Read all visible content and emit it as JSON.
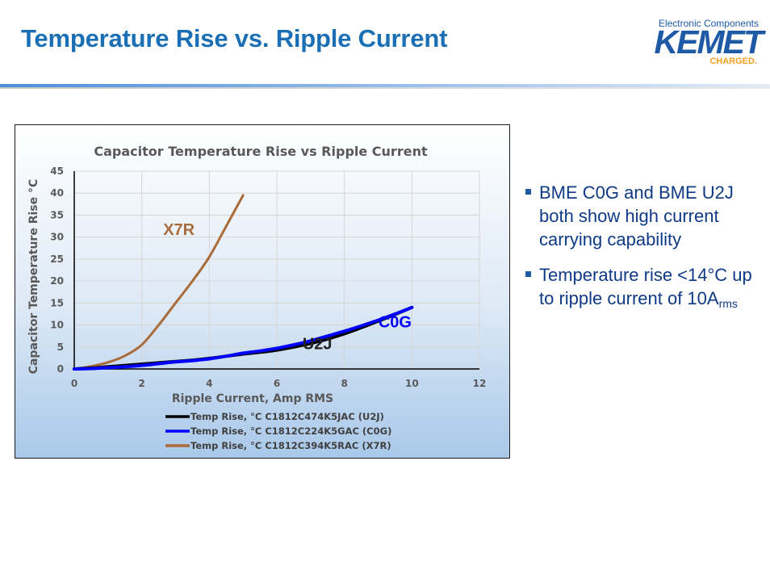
{
  "slide": {
    "title": "Temperature Rise vs. Ripple Current",
    "logo": {
      "tagline": "Electronic Components",
      "brand": "KEMET",
      "sub": "CHARGED."
    }
  },
  "bullets": [
    {
      "text": "BME C0G and BME U2J both show high current carrying capability"
    },
    {
      "text": "Temperature rise <14°C up to ripple current of 10A",
      "subscript": "rms"
    }
  ],
  "chart_data": {
    "type": "line",
    "title": "Capacitor Temperature Rise vs Ripple Current",
    "xlabel": "Ripple Current, Amp RMS",
    "ylabel": "Capacitor Temperature Rise °C",
    "xlim": [
      0,
      12
    ],
    "ylim": [
      0,
      45
    ],
    "xticks": [
      0,
      2,
      4,
      6,
      8,
      10,
      12
    ],
    "yticks": [
      0,
      5,
      10,
      15,
      20,
      25,
      30,
      35,
      40,
      45
    ],
    "grid": true,
    "legend_position": "bottom",
    "series": [
      {
        "name": "Temp Rise, °C C1812C474K5JAC (U2J)",
        "color": "#000000",
        "x": [
          0,
          0.5,
          1,
          1.5,
          2,
          2.5,
          3,
          3.5,
          4,
          4.5,
          5,
          5.5,
          6,
          6.5,
          7,
          7.5,
          8,
          8.5,
          9,
          9.5,
          10
        ],
        "y": [
          0,
          0.2,
          0.5,
          0.8,
          1.1,
          1.4,
          1.7,
          2.0,
          2.4,
          2.9,
          3.4,
          3.8,
          4.3,
          5.0,
          5.8,
          6.8,
          8.0,
          9.4,
          10.9,
          12.4,
          14.0
        ]
      },
      {
        "name": "Temp Rise, °C C1812C224K5GAC (C0G)",
        "color": "#0000ff",
        "x": [
          0,
          0.5,
          1,
          1.5,
          2,
          2.5,
          3,
          3.5,
          4,
          4.5,
          5,
          5.5,
          6,
          6.5,
          7,
          7.5,
          8,
          8.5,
          9,
          9.5,
          10
        ],
        "y": [
          0,
          0.1,
          0.3,
          0.5,
          0.8,
          1.2,
          1.6,
          1.9,
          2.3,
          2.9,
          3.6,
          4.1,
          4.7,
          5.5,
          6.4,
          7.5,
          8.6,
          9.8,
          11.1,
          12.5,
          14.0
        ]
      },
      {
        "name": "Temp Rise, °C C1812C394K5RAC (X7R)",
        "color": "#a96b3a",
        "x": [
          0,
          0.5,
          1,
          1.5,
          2,
          2.5,
          3,
          3.5,
          4,
          4.5,
          5
        ],
        "y": [
          0,
          0.6,
          1.5,
          3.0,
          5.5,
          10.0,
          15.0,
          20.0,
          25.5,
          32.5,
          39.5
        ]
      }
    ],
    "annotations": [
      {
        "text": "X7R",
        "x": 3.1,
        "y": 30.5,
        "color": "#a96b3a"
      },
      {
        "text": "C0G",
        "x": 9.5,
        "y": 9.5,
        "color": "#0000ff"
      },
      {
        "text": "U2J",
        "x": 7.2,
        "y": 4.5,
        "color": "#222222"
      }
    ]
  }
}
